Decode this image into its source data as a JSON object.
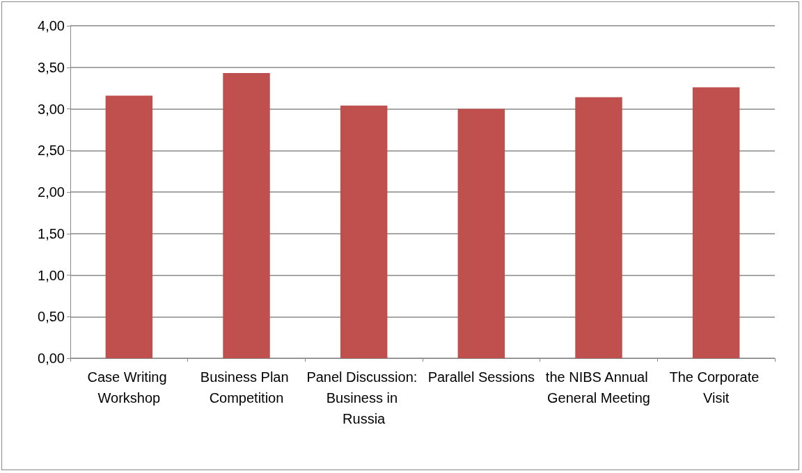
{
  "chart_data": {
    "type": "bar",
    "categories": [
      "Case Writing Workshop",
      "Business Plan Competition",
      "Panel Discussion: Business in Russia",
      "Parallel Sessions",
      "the NIBS Annual General Meeting",
      "The Corporate Visit"
    ],
    "values": [
      3.16,
      3.43,
      3.04,
      3.0,
      3.14,
      3.26
    ],
    "color": "#c0504d",
    "ylim": [
      0,
      4
    ],
    "yticks": [
      {
        "value": 0,
        "label": "0,00"
      },
      {
        "value": 0.5,
        "label": "0,50"
      },
      {
        "value": 1,
        "label": "1,00"
      },
      {
        "value": 1.5,
        "label": "1,50"
      },
      {
        "value": 2,
        "label": "2,00"
      },
      {
        "value": 2.5,
        "label": "2,50"
      },
      {
        "value": 3,
        "label": "3,00"
      },
      {
        "value": 3.5,
        "label": "3,50"
      },
      {
        "value": 4,
        "label": "4,00"
      }
    ],
    "grid": true
  }
}
